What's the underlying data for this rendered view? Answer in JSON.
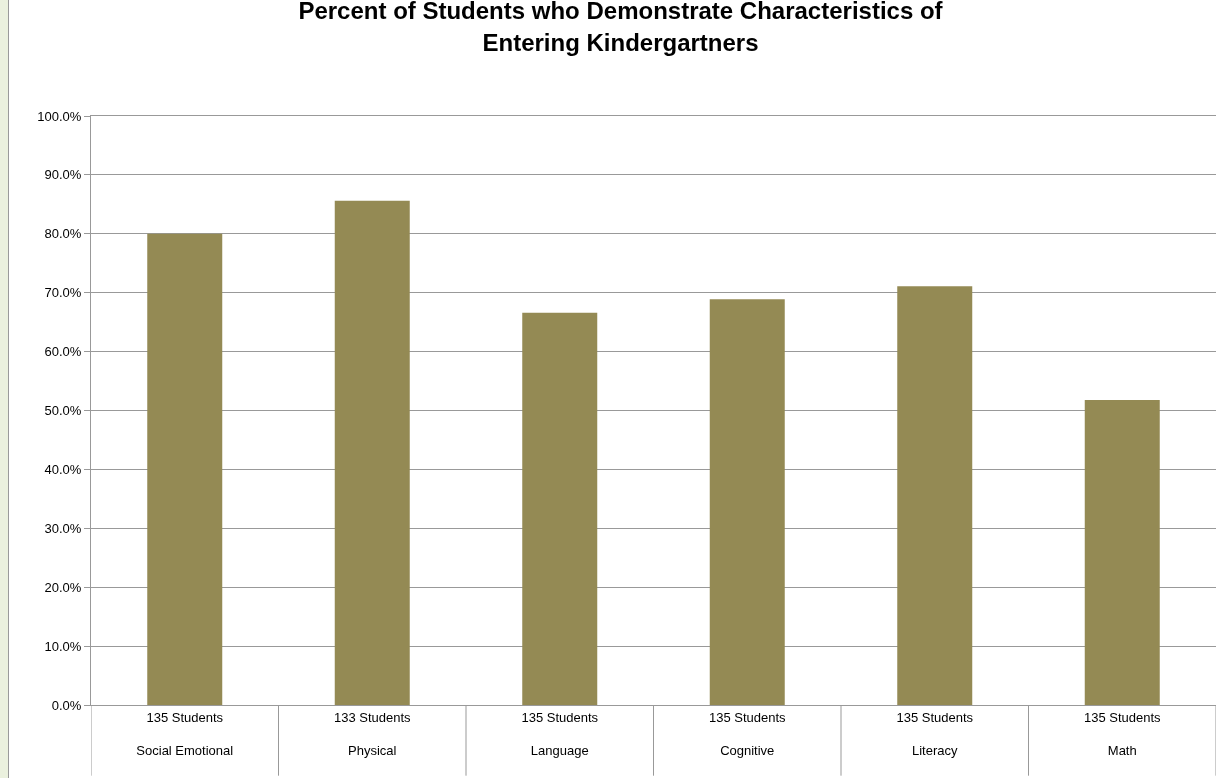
{
  "chart_data": {
    "type": "bar",
    "title": "Percent of Students who Demonstrate Characteristics of\nEntering Kindergartners",
    "categories": [
      "135 Students\nSocial Emotional",
      "133 Students\nPhysical",
      "135 Students\nLanguage",
      "135 Students\nCognitive",
      "135 Students\nLiteracy",
      "135 Students\nMath"
    ],
    "values": [
      80.0,
      85.6,
      66.6,
      68.9,
      71.1,
      51.8
    ],
    "color": "#948a54",
    "ylim": [
      0,
      100
    ],
    "yticks": [
      {
        "value": 0,
        "label": "0.0%"
      },
      {
        "value": 10,
        "label": "10.0%"
      },
      {
        "value": 20,
        "label": "20.0%"
      },
      {
        "value": 30,
        "label": "30.0%"
      },
      {
        "value": 40,
        "label": "40.0%"
      },
      {
        "value": 50,
        "label": "50.0%"
      },
      {
        "value": 60,
        "label": "60.0%"
      },
      {
        "value": 70,
        "label": "70.0%"
      },
      {
        "value": 80,
        "label": "80.0%"
      },
      {
        "value": 90,
        "label": "90.0%"
      },
      {
        "value": 100,
        "label": "100.0%"
      }
    ],
    "grid": "y"
  }
}
